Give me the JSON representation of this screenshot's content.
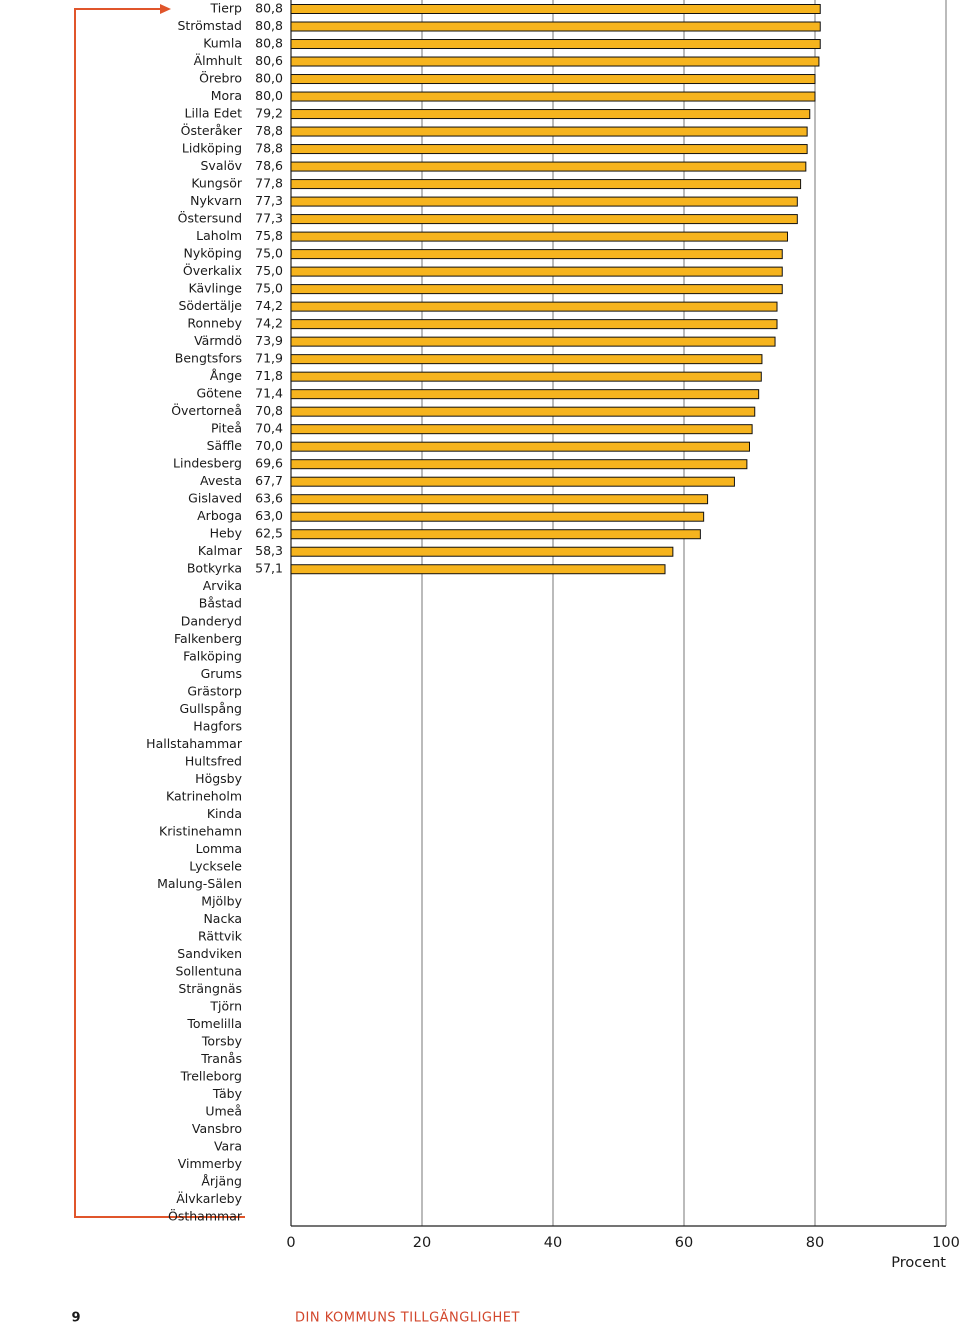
{
  "chart_data": {
    "type": "barh",
    "categories": [
      "Tierp",
      "Strömstad",
      "Kumla",
      "Älmhult",
      "Örebro",
      "Mora",
      "Lilla Edet",
      "Österåker",
      "Lidköping",
      "Svalöv",
      "Kungsör",
      "Nykvarn",
      "Östersund",
      "Laholm",
      "Nyköping",
      "Överkalix",
      "Kävlinge",
      "Södertälje",
      "Ronneby",
      "Värmdö",
      "Bengtsfors",
      "Ånge",
      "Götene",
      "Övertorneå",
      "Piteå",
      "Säffle",
      "Lindesberg",
      "Avesta",
      "Gislaved",
      "Arboga",
      "Heby",
      "Kalmar",
      "Botkyrka",
      "Arvika",
      "Båstad",
      "Danderyd",
      "Falkenberg",
      "Falköping",
      "Grums",
      "Grästorp",
      "Gullspång",
      "Hagfors",
      "Hallstahammar",
      "Hultsfred",
      "Högsby",
      "Katrineholm",
      "Kinda",
      "Kristinehamn",
      "Lomma",
      "Lycksele",
      "Malung-Sälen",
      "Mjölby",
      "Nacka",
      "Rättvik",
      "Sandviken",
      "Sollentuna",
      "Strängnäs",
      "Tjörn",
      "Tomelilla",
      "Torsby",
      "Tranås",
      "Trelleborg",
      "Täby",
      "Umeå",
      "Vansbro",
      "Vara",
      "Vimmerby",
      "Årjäng",
      "Älvkarleby",
      "Östhammar"
    ],
    "values": [
      80.8,
      80.8,
      80.8,
      80.6,
      80.0,
      80.0,
      79.2,
      78.8,
      78.8,
      78.6,
      77.8,
      77.3,
      77.3,
      75.8,
      75.0,
      75.0,
      75.0,
      74.2,
      74.2,
      73.9,
      71.9,
      71.8,
      71.4,
      70.8,
      70.4,
      70.0,
      69.6,
      67.7,
      63.6,
      63.0,
      62.5,
      58.3,
      57.1,
      null,
      null,
      null,
      null,
      null,
      null,
      null,
      null,
      null,
      null,
      null,
      null,
      null,
      null,
      null,
      null,
      null,
      null,
      null,
      null,
      null,
      null,
      null,
      null,
      null,
      null,
      null,
      null,
      null,
      null,
      null,
      null,
      null,
      null,
      null,
      null,
      null
    ],
    "value_labels": [
      "80,8",
      "80,8",
      "80,8",
      "80,6",
      "80,0",
      "80,0",
      "79,2",
      "78,8",
      "78,8",
      "78,6",
      "77,8",
      "77,3",
      "77,3",
      "75,8",
      "75,0",
      "75,0",
      "75,0",
      "74,2",
      "74,2",
      "73,9",
      "71,9",
      "71,8",
      "71,4",
      "70,8",
      "70,4",
      "70,0",
      "69,6",
      "67,7",
      "63,6",
      "63,0",
      "62,5",
      "58,3",
      "57,1",
      null,
      null,
      null,
      null,
      null,
      null,
      null,
      null,
      null,
      null,
      null,
      null,
      null,
      null,
      null,
      null,
      null,
      null,
      null,
      null,
      null,
      null,
      null,
      null,
      null,
      null,
      null,
      null,
      null,
      null,
      null,
      null,
      null,
      null,
      null,
      null,
      null
    ],
    "color": "#f6b41e",
    "xlim": [
      0,
      100
    ],
    "xticks": [
      0,
      20,
      40,
      60,
      80,
      100
    ],
    "xlabel": "Procent",
    "grid": true
  },
  "footer": {
    "page_number": "9",
    "title": "DIN KOMMUNS TILLGÄNGLIGHET"
  }
}
